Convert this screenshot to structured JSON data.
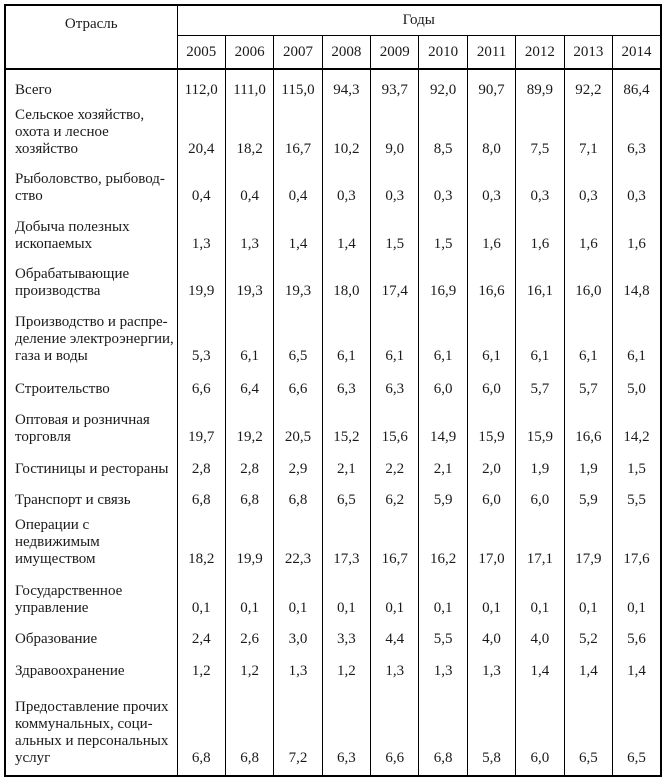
{
  "colors": {
    "background": "#ffffff",
    "text": "#1a1a1a",
    "border": "#000000"
  },
  "table": {
    "corner_header": "Отрасль",
    "group_header": "Годы",
    "years": [
      "2005",
      "2006",
      "2007",
      "2008",
      "2009",
      "2010",
      "2011",
      "2012",
      "2013",
      "2014"
    ],
    "rows": [
      {
        "label": "Всего",
        "values": [
          "112,0",
          "111,0",
          "115,0",
          "94,3",
          "93,7",
          "92,0",
          "90,7",
          "89,9",
          "92,2",
          "86,4"
        ]
      },
      {
        "label": "Сельское хозяйство,\nохота и лесное хозяйство",
        "values": [
          "20,4",
          "18,2",
          "16,7",
          "10,2",
          "9,0",
          "8,5",
          "8,0",
          "7,5",
          "7,1",
          "6,3"
        ]
      },
      {
        "label": "Рыболовство, рыбовод-\nство",
        "values": [
          "0,4",
          "0,4",
          "0,4",
          "0,3",
          "0,3",
          "0,3",
          "0,3",
          "0,3",
          "0,3",
          "0,3"
        ]
      },
      {
        "label": "Добыча полезных\nископаемых",
        "values": [
          "1,3",
          "1,3",
          "1,4",
          "1,4",
          "1,5",
          "1,5",
          "1,6",
          "1,6",
          "1,6",
          "1,6"
        ]
      },
      {
        "label": "Обрабатывающие\nпроизводства",
        "values": [
          "19,9",
          "19,3",
          "19,3",
          "18,0",
          "17,4",
          "16,9",
          "16,6",
          "16,1",
          "16,0",
          "14,8"
        ]
      },
      {
        "label": "Производство и распре-\nделение электроэнергии,\nгаза и воды",
        "values": [
          "5,3",
          "6,1",
          "6,5",
          "6,1",
          "6,1",
          "6,1",
          "6,1",
          "6,1",
          "6,1",
          "6,1"
        ]
      },
      {
        "label": "Строительство",
        "values": [
          "6,6",
          "6,4",
          "6,6",
          "6,3",
          "6,3",
          "6,0",
          "6,0",
          "5,7",
          "5,7",
          "5,0"
        ]
      },
      {
        "label": "Оптовая и розничная\nторговля",
        "values": [
          "19,7",
          "19,2",
          "20,5",
          "15,2",
          "15,6",
          "14,9",
          "15,9",
          "15,9",
          "16,6",
          "14,2"
        ]
      },
      {
        "label": "Гостиницы и рестораны",
        "values": [
          "2,8",
          "2,8",
          "2,9",
          "2,1",
          "2,2",
          "2,1",
          "2,0",
          "1,9",
          "1,9",
          "1,5"
        ]
      },
      {
        "label": "Транспорт и связь",
        "values": [
          "6,8",
          "6,8",
          "6,8",
          "6,5",
          "6,2",
          "5,9",
          "6,0",
          "6,0",
          "5,9",
          "5,5"
        ]
      },
      {
        "label": "Операции с недвижимым\nимуществом",
        "values": [
          "18,2",
          "19,9",
          "22,3",
          "17,3",
          "16,7",
          "16,2",
          "17,0",
          "17,1",
          "17,9",
          "17,6"
        ]
      },
      {
        "label": "Государственное\nуправление",
        "values": [
          "0,1",
          "0,1",
          "0,1",
          "0,1",
          "0,1",
          "0,1",
          "0,1",
          "0,1",
          "0,1",
          "0,1"
        ]
      },
      {
        "label": "Образование",
        "values": [
          "2,4",
          "2,6",
          "3,0",
          "3,3",
          "4,4",
          "5,5",
          "4,0",
          "4,0",
          "5,2",
          "5,6"
        ]
      },
      {
        "label": "Здравоохранение",
        "values": [
          "1,2",
          "1,2",
          "1,3",
          "1,2",
          "1,3",
          "1,3",
          "1,3",
          "1,4",
          "1,4",
          "1,4"
        ]
      },
      {
        "label": "Предоставление прочих\nкоммунальных, соци-\nальных и персональных\nуслуг",
        "values": [
          "6,8",
          "6,8",
          "7,2",
          "6,3",
          "6,6",
          "6,8",
          "5,8",
          "6,0",
          "6,5",
          "6,5"
        ]
      }
    ]
  }
}
